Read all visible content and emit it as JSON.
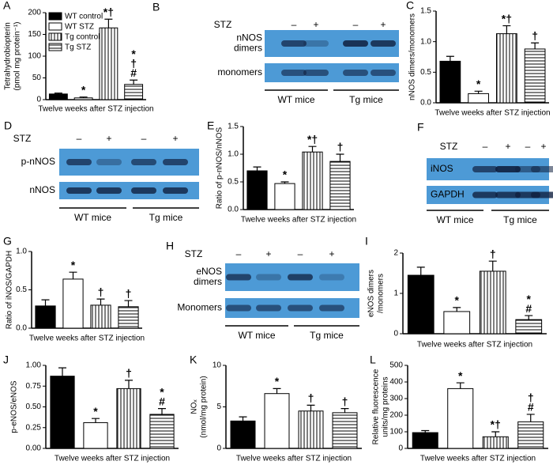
{
  "chart_data": [
    {
      "type": "bar",
      "panel": "A",
      "ylabel": [
        "Tetrahydrobiopterin",
        "(pmol mg protein⁻¹)"
      ],
      "xlabel": "Twelve weeks after STZ injection",
      "ylim": [
        0,
        200
      ],
      "yticks": [
        0,
        50,
        100,
        150,
        200
      ],
      "values": [
        13,
        4,
        165,
        35
      ],
      "errors": [
        2,
        2,
        20,
        10
      ],
      "annotations": [
        null,
        [
          "*"
        ],
        [
          "*†"
        ],
        [
          "*",
          "†",
          "#"
        ]
      ],
      "patterns": [
        "solid",
        "open",
        "vertical",
        "horizontal"
      ],
      "legend": [
        "WT  control",
        "WT STZ",
        "Tg control",
        "Tg STZ"
      ]
    },
    {
      "type": "bar",
      "panel": "C",
      "ylabel": [
        "nNOS dimers/monomers"
      ],
      "xlabel": "Twelve weeks after STZ injection",
      "ylim": [
        0,
        1.5
      ],
      "yticks": [
        {
          "value": 0,
          "label": "0.0"
        },
        0.5,
        {
          "value": 1,
          "label": "1.0"
        },
        1.5
      ],
      "values": [
        0.68,
        0.15,
        1.13,
        0.88
      ],
      "errors": [
        0.08,
        0.04,
        0.13,
        0.1
      ],
      "annotations": [
        null,
        [
          "*"
        ],
        [
          "*†"
        ],
        [
          "†"
        ]
      ],
      "patterns": [
        "solid",
        "open",
        "vertical",
        "horizontal"
      ]
    },
    {
      "type": "bar",
      "panel": "E",
      "ylabel": [
        "Ratio of p-nNOS/nNOS"
      ],
      "xlabel": "Twelve weeks after STZ injection",
      "ylim": [
        0,
        1.5
      ],
      "yticks": [
        {
          "value": 0,
          "label": "0.0"
        },
        0.5,
        {
          "value": 1,
          "label": "1.0"
        },
        1.5
      ],
      "values": [
        0.7,
        0.47,
        1.04,
        0.87
      ],
      "errors": [
        0.07,
        0.03,
        0.1,
        0.13
      ],
      "annotations": [
        null,
        [
          "*"
        ],
        [
          "*†"
        ],
        [
          "†"
        ]
      ],
      "patterns": [
        "solid",
        "open",
        "vertical",
        "horizontal"
      ]
    },
    {
      "type": "bar",
      "panel": "G",
      "ylabel": [
        "Ratio of iNOS/GAPDH"
      ],
      "xlabel": "Twelve weeks after STZ injection",
      "ylim": [
        0,
        1
      ],
      "yticks": [
        {
          "value": 0,
          "label": "0.0"
        },
        0.5,
        {
          "value": 1,
          "label": "1.0"
        }
      ],
      "values": [
        0.29,
        0.64,
        0.3,
        0.28
      ],
      "errors": [
        0.08,
        0.09,
        0.08,
        0.08
      ],
      "annotations": [
        null,
        [
          "*"
        ],
        [
          "†"
        ],
        [
          "†"
        ]
      ],
      "patterns": [
        "solid",
        "open",
        "vertical",
        "horizontal"
      ]
    },
    {
      "type": "bar",
      "panel": "I",
      "ylabel": [
        "eNOS dimers",
        "/monomers"
      ],
      "xlabel": "Twelve weeks after STZ injection",
      "ylim": [
        0,
        2
      ],
      "yticks": [
        0,
        1,
        2
      ],
      "values": [
        1.45,
        0.55,
        1.55,
        0.35
      ],
      "errors": [
        0.2,
        0.1,
        0.25,
        0.1
      ],
      "annotations": [
        null,
        [
          "*"
        ],
        [
          "†"
        ],
        [
          "*",
          "#"
        ]
      ],
      "patterns": [
        "solid",
        "open",
        "vertical",
        "horizontal"
      ]
    },
    {
      "type": "bar",
      "panel": "J",
      "ylabel": [
        "p-eNOS/eNOS"
      ],
      "xlabel": "Twelve weeks after STZ injection",
      "ylim": [
        0,
        1
      ],
      "yticks": [
        {
          "value": 0,
          "label": "0.00"
        },
        {
          "value": 0.25,
          "label": "0.25"
        },
        {
          "value": 0.5,
          "label": "0.50"
        },
        {
          "value": 0.75,
          "label": "0.75"
        },
        {
          "value": 1,
          "label": "1.00"
        }
      ],
      "values": [
        0.87,
        0.31,
        0.72,
        0.41
      ],
      "errors": [
        0.1,
        0.05,
        0.1,
        0.07
      ],
      "annotations": [
        null,
        [
          "*"
        ],
        [
          "†"
        ],
        [
          "*",
          "#"
        ]
      ],
      "patterns": [
        "solid",
        "open",
        "vertical",
        "horizontal"
      ]
    },
    {
      "type": "bar",
      "panel": "K",
      "ylabel": [
        "NOₓ",
        "(nmol/mg protein)"
      ],
      "xlabel": "Twelve weeks after STZ injection",
      "ylim": [
        0,
        10
      ],
      "yticks": [
        0,
        5,
        10
      ],
      "values": [
        3.3,
        6.6,
        4.5,
        4.3
      ],
      "errors": [
        0.5,
        0.6,
        0.7,
        0.5
      ],
      "annotations": [
        null,
        [
          "*"
        ],
        [
          "†"
        ],
        [
          "†"
        ]
      ],
      "patterns": [
        "solid",
        "open",
        "vertical",
        "horizontal"
      ]
    },
    {
      "type": "bar",
      "panel": "L",
      "ylabel": [
        "Relative fluorescence",
        "units/mg proteins"
      ],
      "xlabel": "Twelve weeks after STZ injection",
      "ylim": [
        0,
        500
      ],
      "yticks": [
        0,
        100,
        200,
        300,
        400,
        500
      ],
      "values": [
        95,
        360,
        70,
        160
      ],
      "errors": [
        12,
        35,
        30,
        45
      ],
      "annotations": [
        null,
        [
          "*"
        ],
        [
          "*†"
        ],
        [
          "†",
          "#"
        ]
      ],
      "patterns": [
        "solid",
        "open",
        "vertical",
        "horizontal"
      ]
    }
  ],
  "blots": [
    {
      "panel": "B",
      "treatment": "STZ",
      "signs": [
        "–",
        "+",
        "–",
        "+"
      ],
      "rows": [
        [
          "nNOS",
          "dimers"
        ],
        [
          "monomers"
        ]
      ],
      "groups": [
        "WT mice",
        "Tg mice"
      ]
    },
    {
      "panel": "D",
      "treatment": "STZ",
      "signs": [
        "–",
        "+",
        "–",
        "+"
      ],
      "rows": [
        [
          "p-nNOS"
        ],
        [
          "nNOS"
        ]
      ],
      "groups": [
        "WT mice",
        "Tg mice"
      ]
    },
    {
      "panel": "F",
      "treatment": "STZ",
      "signs": [
        "–",
        "+",
        "–",
        "+"
      ],
      "rows": [
        [
          "iNOS"
        ],
        [
          "GAPDH"
        ]
      ],
      "groups": [
        "WT mice",
        "Tg mice"
      ]
    },
    {
      "panel": "H",
      "treatment": "STZ",
      "signs": [
        "–",
        "+",
        "–",
        "+"
      ],
      "rows": [
        [
          "eNOS",
          "dimers"
        ],
        [
          "Monomers"
        ]
      ],
      "groups": [
        "WT mice",
        "Tg mice"
      ]
    }
  ]
}
